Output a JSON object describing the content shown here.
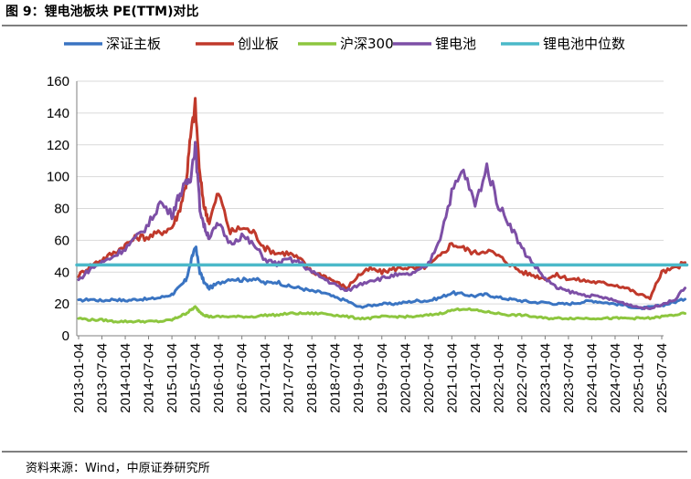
{
  "title": "图 9：锂电池板块 PE(TTM)对比",
  "source": "资料来源：Wind，中原证券研究所",
  "chart_data": {
    "type": "line",
    "title": "锂电池板块 PE(TTM)对比",
    "xlabel": "",
    "ylabel": "",
    "ylim": [
      0,
      160
    ],
    "yticks": [
      "0",
      "20",
      "40",
      "60",
      "80",
      "100",
      "120",
      "140",
      "160"
    ],
    "categories": [
      "2013-01-04",
      "2013-07-04",
      "2014-01-04",
      "2014-07-04",
      "2015-01-04",
      "2015-07-04",
      "2016-01-04",
      "2016-07-04",
      "2017-01-04",
      "2017-07-04",
      "2018-01-04",
      "2018-07-04",
      "2019-01-04",
      "2019-07-04",
      "2020-01-04",
      "2020-07-04",
      "2021-01-04",
      "2021-07-04",
      "2022-01-04",
      "2022-07-04",
      "2023-01-04",
      "2023-07-04",
      "2024-01-04",
      "2024-07-04",
      "2025-01-04",
      "2025-07-04"
    ],
    "grid": true,
    "legend_position": "top",
    "series": [
      {
        "name": "深证主板",
        "color": "#3a74c2",
        "x": [
          0,
          0.5,
          1,
          1.5,
          2,
          2.5,
          3,
          3.5,
          4,
          4.3,
          4.6,
          4.8,
          5,
          5.2,
          5.4,
          5.6,
          6,
          6.5,
          7,
          7.5,
          8,
          8.5,
          9,
          9.5,
          10,
          10.5,
          11,
          11.5,
          12,
          12.5,
          13,
          13.5,
          14,
          14.5,
          15,
          15.5,
          16,
          16.5,
          17,
          17.5,
          18,
          18.5,
          19,
          19.5,
          20,
          20.5,
          21,
          21.5,
          22,
          22.5,
          23,
          23.5,
          24,
          24.5,
          25,
          25.5,
          26
        ],
        "values": [
          22,
          23,
          22,
          23,
          22,
          23,
          23,
          24,
          26,
          30,
          35,
          45,
          57,
          40,
          33,
          30,
          33,
          36,
          35,
          36,
          33,
          34,
          31,
          30,
          28,
          27,
          24,
          22,
          18,
          19,
          20,
          20,
          21,
          22,
          22,
          24,
          27,
          26,
          25,
          26,
          24,
          23,
          22,
          21,
          21,
          20,
          20,
          21,
          22,
          21,
          20,
          19,
          17,
          18,
          19,
          21,
          23
        ]
      },
      {
        "name": "创业板",
        "color": "#c0392b",
        "x": [
          0,
          0.5,
          1,
          1.5,
          2,
          2.5,
          3,
          3.5,
          4,
          4.3,
          4.6,
          4.8,
          5,
          5.2,
          5.4,
          5.6,
          6,
          6.5,
          7,
          7.5,
          8,
          8.5,
          9,
          9.5,
          10,
          10.5,
          11,
          11.5,
          12,
          12.5,
          13,
          13.5,
          14,
          14.5,
          15,
          15.5,
          16,
          16.5,
          17,
          17.5,
          18,
          18.5,
          19,
          19.5,
          20,
          20.5,
          21,
          21.5,
          22,
          22.5,
          23,
          23.5,
          24,
          24.5,
          25,
          25.5,
          26
        ],
        "values": [
          38,
          44,
          48,
          52,
          57,
          62,
          62,
          65,
          68,
          78,
          95,
          125,
          145,
          100,
          80,
          72,
          90,
          65,
          68,
          65,
          55,
          52,
          52,
          48,
          40,
          38,
          34,
          30,
          38,
          42,
          40,
          42,
          43,
          42,
          44,
          50,
          58,
          55,
          52,
          54,
          50,
          45,
          40,
          38,
          36,
          38,
          36,
          35,
          34,
          33,
          32,
          30,
          26,
          24,
          40,
          42,
          46
        ]
      },
      {
        "name": "沪深300",
        "color": "#8dc63f",
        "x": [
          0,
          0.5,
          1,
          1.5,
          2,
          2.5,
          3,
          3.5,
          4,
          4.3,
          4.6,
          4.8,
          5,
          5.2,
          5.4,
          5.6,
          6,
          6.5,
          7,
          7.5,
          8,
          8.5,
          9,
          9.5,
          10,
          10.5,
          11,
          11.5,
          12,
          12.5,
          13,
          13.5,
          14,
          14.5,
          15,
          15.5,
          16,
          16.5,
          17,
          17.5,
          18,
          18.5,
          19,
          19.5,
          20,
          20.5,
          21,
          21.5,
          22,
          22.5,
          23,
          23.5,
          24,
          24.5,
          25,
          25.5,
          26
        ],
        "values": [
          11,
          10,
          10,
          9,
          9,
          9,
          9,
          9,
          10,
          12,
          14,
          16,
          18,
          15,
          13,
          12,
          12,
          12,
          12,
          12,
          13,
          13,
          14,
          14,
          14,
          14,
          13,
          12,
          11,
          11,
          12,
          12,
          12,
          12,
          13,
          14,
          16,
          17,
          16,
          15,
          14,
          13,
          13,
          12,
          11,
          11,
          11,
          11,
          11,
          11,
          11,
          11,
          11,
          11,
          12,
          13,
          14
        ]
      },
      {
        "name": "锂电池",
        "color": "#7d4fa6",
        "x": [
          0,
          0.5,
          1,
          1.5,
          2,
          2.5,
          3,
          3.5,
          4,
          4.3,
          4.6,
          4.8,
          5,
          5.2,
          5.4,
          5.6,
          6,
          6.5,
          7,
          7.5,
          8,
          8.5,
          9,
          9.5,
          10,
          10.5,
          11,
          11.5,
          12,
          12.5,
          13,
          13.5,
          14,
          14.5,
          15,
          15.5,
          16,
          16.5,
          17,
          17.5,
          18,
          18.5,
          19,
          19.5,
          20,
          20.5,
          21,
          21.5,
          22,
          22.5,
          23,
          23.5,
          24,
          24.5,
          25,
          25.5,
          26
        ],
        "values": [
          35,
          42,
          46,
          50,
          55,
          62,
          70,
          84,
          76,
          88,
          95,
          100,
          120,
          80,
          68,
          62,
          70,
          58,
          63,
          57,
          48,
          45,
          48,
          46,
          40,
          36,
          32,
          28,
          32,
          35,
          36,
          38,
          38,
          40,
          45,
          62,
          90,
          104,
          82,
          106,
          82,
          70,
          55,
          45,
          36,
          30,
          28,
          26,
          25,
          24,
          22,
          20,
          18,
          17,
          20,
          22,
          30
        ]
      },
      {
        "name": "锂电池中位数",
        "color": "#4bb9c9",
        "x": [
          0,
          26
        ],
        "values": [
          44.5,
          44.5
        ]
      }
    ]
  }
}
